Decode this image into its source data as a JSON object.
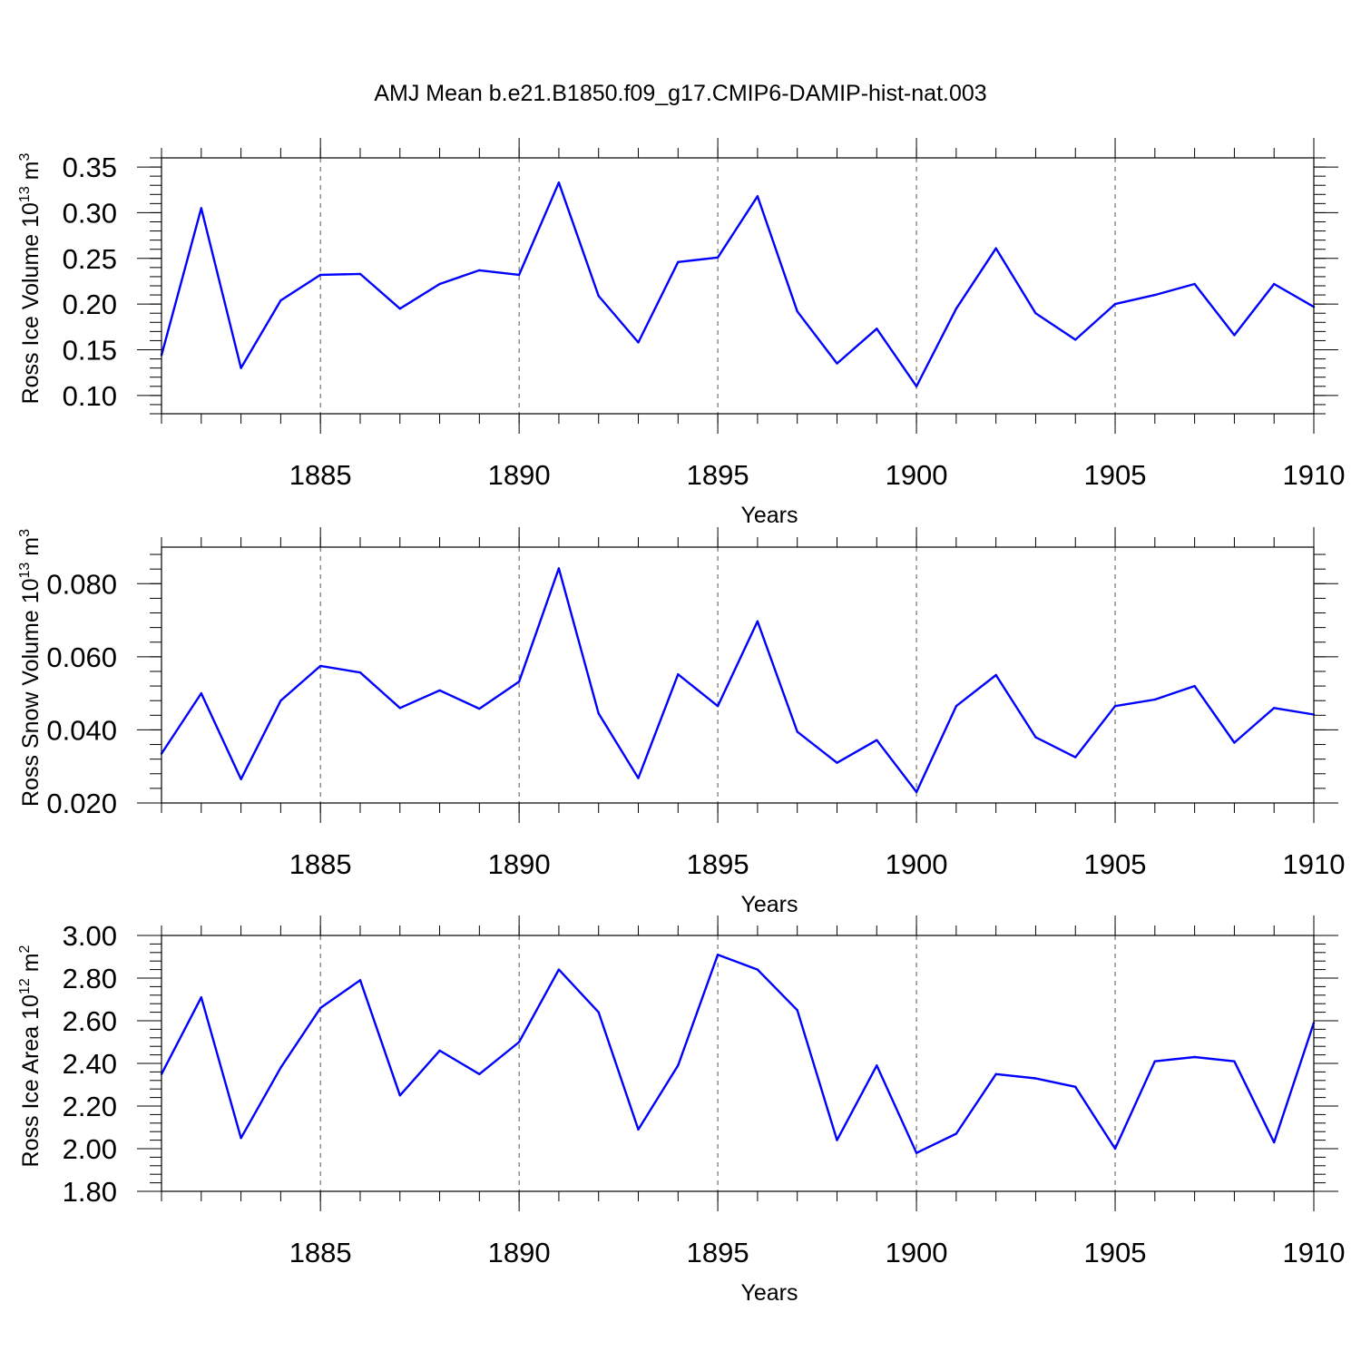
{
  "title": "AMJ Mean b.e21.B1850.f09_g17.CMIP6-DAMIP-hist-nat.003",
  "colors": {
    "line": "#0000ff",
    "axis": "#000000",
    "grid": "#555555"
  },
  "chart_data": [
    {
      "type": "line",
      "xlabel": "Years",
      "ylabel_base": "Ross Ice Volume 10",
      "ylabel_exp1": "13",
      "ylabel_unit": " m",
      "ylabel_exp2": "3",
      "xlim": [
        1881,
        1910
      ],
      "ylim": [
        0.08,
        0.36
      ],
      "yticks": [
        0.1,
        0.15,
        0.2,
        0.25,
        0.3,
        0.35
      ],
      "ytick_labels": [
        "0.10",
        "0.15",
        "0.20",
        "0.25",
        "0.30",
        "0.35"
      ],
      "yminor_step": 0.01,
      "xticks": [
        1885,
        1890,
        1895,
        1900,
        1905,
        1910
      ],
      "xtick_labels": [
        "1885",
        "1890",
        "1895",
        "1900",
        "1905",
        "1910"
      ],
      "grid_x": true,
      "series": [
        {
          "name": "Ross Ice Volume",
          "x": [
            1881,
            1882,
            1883,
            1884,
            1885,
            1886,
            1887,
            1888,
            1889,
            1890,
            1891,
            1892,
            1893,
            1894,
            1895,
            1896,
            1897,
            1898,
            1899,
            1900,
            1901,
            1902,
            1903,
            1904,
            1905,
            1906,
            1907,
            1908,
            1909,
            1910
          ],
          "values": [
            0.144,
            0.305,
            0.13,
            0.204,
            0.232,
            0.233,
            0.195,
            0.222,
            0.237,
            0.232,
            0.333,
            0.209,
            0.158,
            0.246,
            0.251,
            0.318,
            0.192,
            0.135,
            0.173,
            0.11,
            0.195,
            0.261,
            0.19,
            0.161,
            0.2,
            0.21,
            0.222,
            0.166,
            0.222,
            0.197
          ]
        }
      ]
    },
    {
      "type": "line",
      "xlabel": "Years",
      "ylabel_base": "Ross Snow Volume 10",
      "ylabel_exp1": "13",
      "ylabel_unit": " m",
      "ylabel_exp2": "3",
      "xlim": [
        1881,
        1910
      ],
      "ylim": [
        0.02,
        0.09
      ],
      "yticks": [
        0.02,
        0.04,
        0.06,
        0.08
      ],
      "ytick_labels": [
        "0.020",
        "0.040",
        "0.060",
        "0.080"
      ],
      "yminor_step": 0.004,
      "xticks": [
        1885,
        1890,
        1895,
        1900,
        1905,
        1910
      ],
      "xtick_labels": [
        "1885",
        "1890",
        "1895",
        "1900",
        "1905",
        "1910"
      ],
      "grid_x": true,
      "series": [
        {
          "name": "Ross Snow Volume",
          "x": [
            1881,
            1882,
            1883,
            1884,
            1885,
            1886,
            1887,
            1888,
            1889,
            1890,
            1891,
            1892,
            1893,
            1894,
            1895,
            1896,
            1897,
            1898,
            1899,
            1900,
            1901,
            1902,
            1903,
            1904,
            1905,
            1906,
            1907,
            1908,
            1909,
            1910
          ],
          "values": [
            0.0335,
            0.05,
            0.0265,
            0.048,
            0.0575,
            0.0557,
            0.046,
            0.0508,
            0.0458,
            0.0532,
            0.0842,
            0.0445,
            0.0268,
            0.0552,
            0.0465,
            0.0697,
            0.0395,
            0.031,
            0.0372,
            0.023,
            0.0465,
            0.055,
            0.038,
            0.0325,
            0.0465,
            0.0483,
            0.052,
            0.0365,
            0.046,
            0.0442
          ]
        }
      ]
    },
    {
      "type": "line",
      "xlabel": "Years",
      "ylabel_base": "Ross Ice Area 10",
      "ylabel_exp1": "12",
      "ylabel_unit": " m",
      "ylabel_exp2": "2",
      "xlim": [
        1881,
        1910
      ],
      "ylim": [
        1.8,
        3.0
      ],
      "yticks": [
        1.8,
        2.0,
        2.2,
        2.4,
        2.6,
        2.8,
        3.0
      ],
      "ytick_labels": [
        "1.80",
        "2.00",
        "2.20",
        "2.40",
        "2.60",
        "2.80",
        "3.00"
      ],
      "yminor_step": 0.04,
      "xticks": [
        1885,
        1890,
        1895,
        1900,
        1905,
        1910
      ],
      "xtick_labels": [
        "1885",
        "1890",
        "1895",
        "1900",
        "1905",
        "1910"
      ],
      "grid_x": true,
      "series": [
        {
          "name": "Ross Ice Area",
          "x": [
            1881,
            1882,
            1883,
            1884,
            1885,
            1886,
            1887,
            1888,
            1889,
            1890,
            1891,
            1892,
            1893,
            1894,
            1895,
            1896,
            1897,
            1898,
            1899,
            1900,
            1901,
            1902,
            1903,
            1904,
            1905,
            1906,
            1907,
            1908,
            1909,
            1910
          ],
          "values": [
            2.35,
            2.71,
            2.05,
            2.38,
            2.66,
            2.79,
            2.25,
            2.46,
            2.35,
            2.5,
            2.84,
            2.64,
            2.09,
            2.39,
            2.91,
            2.84,
            2.65,
            2.04,
            2.39,
            1.98,
            2.07,
            2.35,
            2.33,
            2.29,
            2.0,
            2.41,
            2.43,
            2.41,
            2.03,
            2.59
          ]
        }
      ]
    }
  ]
}
